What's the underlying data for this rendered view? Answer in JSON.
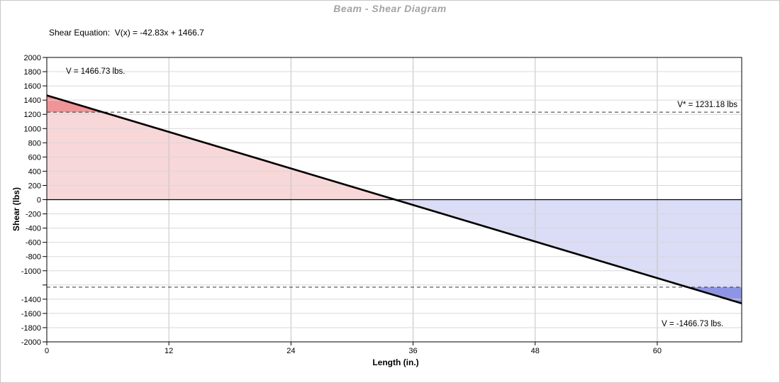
{
  "title": "Beam - Shear Diagram",
  "equation_label": "Shear Equation:  V(x) = -42.83x + 1466.7",
  "chart_data": {
    "type": "line",
    "title": "Beam - Shear Diagram",
    "xlabel": "Length (in.)",
    "ylabel": "Shear (lbs)",
    "xlim": [
      0,
      68.3
    ],
    "ylim": [
      -2000,
      2000
    ],
    "x_ticks": [
      0,
      12,
      24,
      36,
      48,
      60
    ],
    "y_ticks": [
      2000,
      1800,
      1600,
      1400,
      1200,
      1000,
      800,
      600,
      400,
      200,
      0,
      -200,
      -400,
      -600,
      -800,
      -1000,
      -1200,
      -1400,
      -1600,
      -1800,
      -2000
    ],
    "y_tick_labels": [
      "2000",
      "1800",
      "1600",
      "1400",
      "1200",
      "1000",
      "800",
      "600",
      "400",
      "200",
      "0",
      "-200",
      "-400",
      "-600",
      "-800",
      "-1000",
      "",
      "-1400",
      "-1600",
      "-1800",
      "-2000"
    ],
    "grid": true,
    "legend": false,
    "series": [
      {
        "name": "Shear V(x)",
        "equation": "V(x) = -42.83x + 1466.7",
        "slope": -42.83,
        "intercept": 1466.73,
        "v_start": 1466.73,
        "v_end": -1466.73,
        "zero_crossing_x": 34.25
      }
    ],
    "reference_lines": [
      {
        "name": "v-star-positive",
        "value": 1231.18
      },
      {
        "name": "v-star-negative",
        "value": -1231.18
      }
    ],
    "annotations": [
      {
        "id": "v_max",
        "text": "V = 1466.73 lbs."
      },
      {
        "id": "v_star",
        "text": "V* = 1231.18 lbs"
      },
      {
        "id": "v_min",
        "text": "V = -1466.73 lbs."
      }
    ]
  },
  "colors": {
    "positive_fill": "#f8d7d8",
    "positive_over_fill": "#ef9597",
    "negative_fill": "#dbdcf6",
    "negative_over_fill": "#8f95e6",
    "grid_vertical": "#c2c2c2",
    "grid_horizontal": "#d8d8d8",
    "axis": "#000000",
    "shear_line": "#000000",
    "reference_dash": "#333333",
    "title_text": "#a3a3a7",
    "frame_border": "#c8c8c8"
  }
}
